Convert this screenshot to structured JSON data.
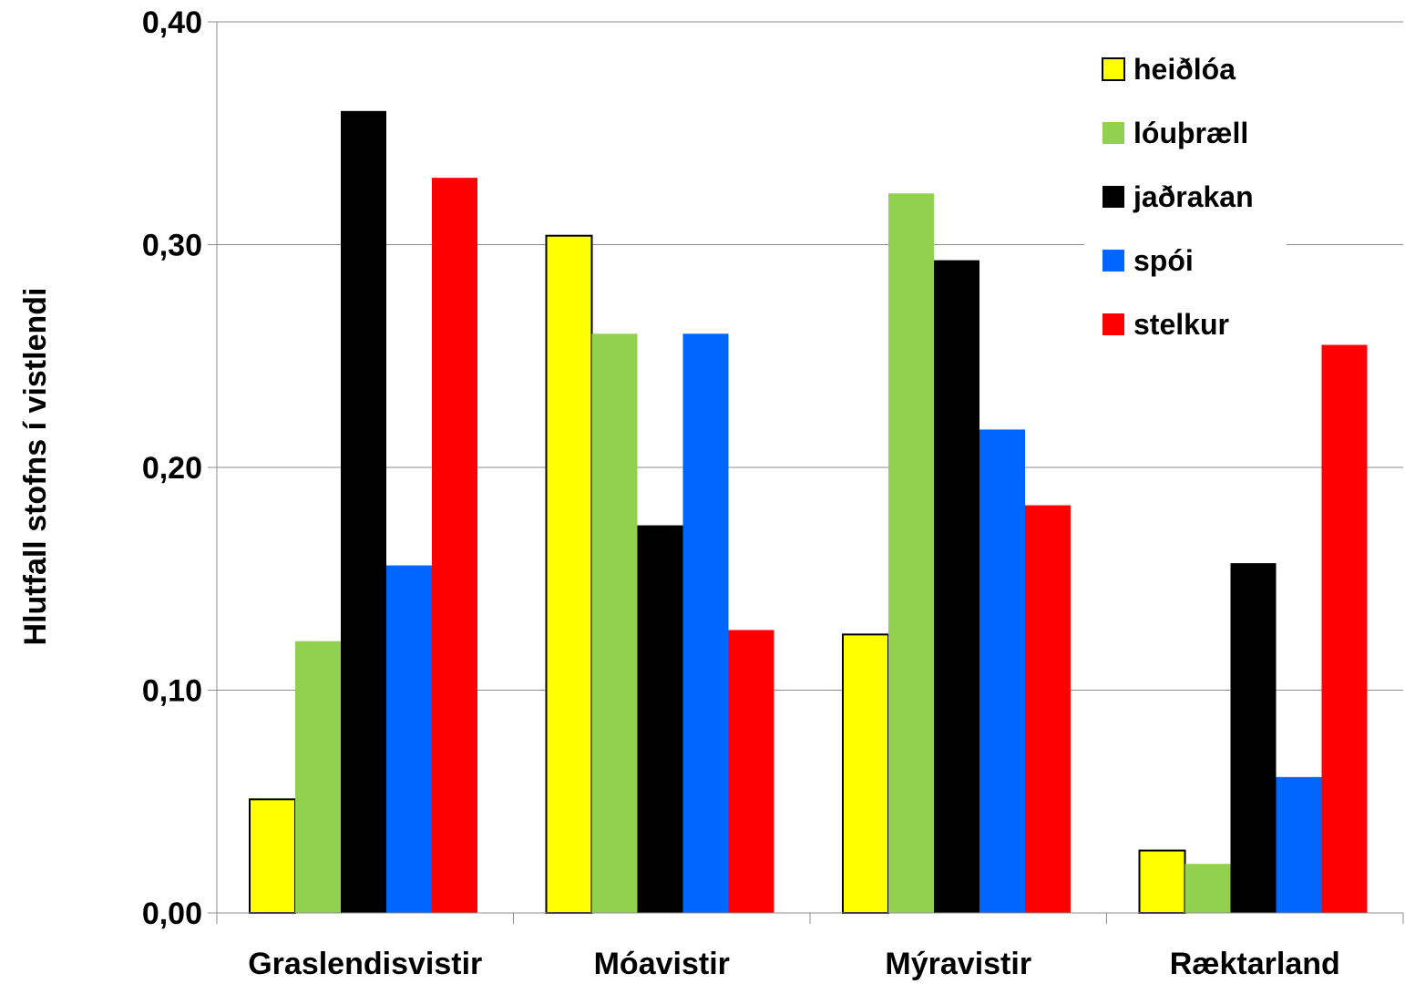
{
  "chart_data": {
    "type": "bar",
    "title": "",
    "xlabel": "",
    "ylabel": "Hlutfall stofns í vistlendi",
    "ylim": [
      0,
      0.4
    ],
    "yticks": [
      "0,00",
      "0,10",
      "0,20",
      "0,30",
      "0,40"
    ],
    "ytick_values": [
      0,
      0.1,
      0.2,
      0.3,
      0.4
    ],
    "grid": true,
    "legend_position": "top-right",
    "categories": [
      "Graslendisvistir",
      "Móavistir",
      "Mýravistir",
      "Ræktarland"
    ],
    "series": [
      {
        "name": "heiðlóa",
        "color": "#ffff00",
        "outline": "#000000",
        "values": [
          0.051,
          0.304,
          0.125,
          0.028
        ]
      },
      {
        "name": "lóuþræll",
        "color": "#92d050",
        "outline": "",
        "values": [
          0.122,
          0.26,
          0.323,
          0.022
        ]
      },
      {
        "name": "jaðrakan",
        "color": "#000000",
        "outline": "",
        "values": [
          0.36,
          0.174,
          0.293,
          0.157
        ]
      },
      {
        "name": "spói",
        "color": "#0066ff",
        "outline": "",
        "values": [
          0.156,
          0.26,
          0.217,
          0.061
        ]
      },
      {
        "name": "stelkur",
        "color": "#ff0000",
        "outline": "",
        "values": [
          0.33,
          0.127,
          0.183,
          0.255
        ]
      }
    ]
  }
}
